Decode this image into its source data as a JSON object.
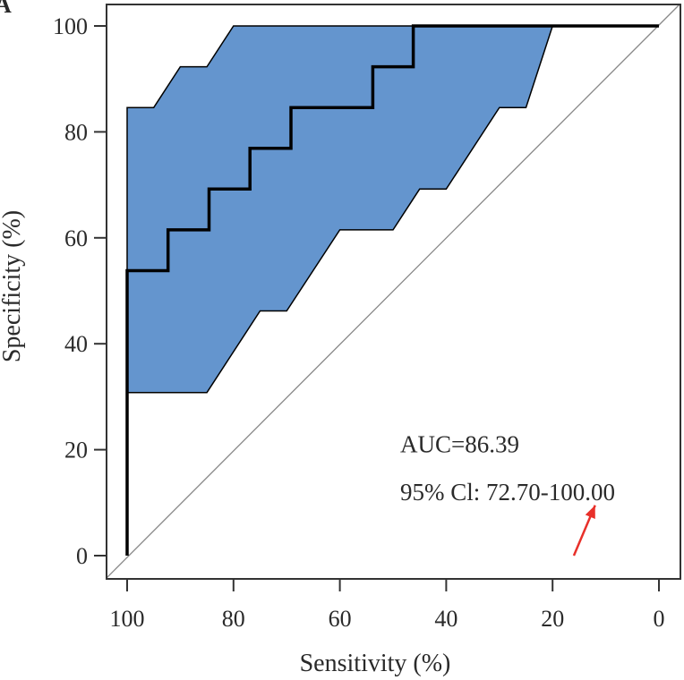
{
  "panel_label": "A",
  "chart_data": {
    "type": "line",
    "title": "",
    "xlabel": "Sensitivity (%)",
    "ylabel": "Specificity (%)",
    "xlim": [
      100,
      0
    ],
    "ylim": [
      0,
      100
    ],
    "x_reversed": true,
    "xticks": [
      100,
      80,
      60,
      40,
      20,
      0
    ],
    "yticks": [
      0,
      20,
      40,
      60,
      80,
      100
    ],
    "grid": false,
    "series": [
      {
        "name": "",
        "kind": "roc-curve",
        "color": "#000000",
        "points": [
          [
            100,
            0
          ],
          [
            100,
            53.8
          ],
          [
            92.3,
            53.8
          ],
          [
            92.3,
            61.5
          ],
          [
            84.6,
            61.5
          ],
          [
            84.6,
            69.2
          ],
          [
            76.9,
            69.2
          ],
          [
            76.9,
            76.9
          ],
          [
            69.2,
            76.9
          ],
          [
            69.2,
            84.6
          ],
          [
            53.8,
            84.6
          ],
          [
            53.8,
            92.3
          ],
          [
            46.2,
            92.3
          ],
          [
            46.2,
            100
          ],
          [
            0,
            100
          ]
        ]
      }
    ],
    "confidence_band": {
      "color": "#6495ce",
      "outline": "#000000",
      "upper": [
        [
          100,
          30.8
        ],
        [
          100,
          84.6
        ],
        [
          95,
          84.6
        ],
        [
          90,
          92.3
        ],
        [
          85,
          92.3
        ],
        [
          80,
          100
        ],
        [
          20,
          100
        ]
      ],
      "lower": [
        [
          20,
          100
        ],
        [
          25,
          84.6
        ],
        [
          30,
          84.6
        ],
        [
          40,
          69.2
        ],
        [
          45,
          69.2
        ],
        [
          50,
          61.5
        ],
        [
          60,
          61.5
        ],
        [
          70,
          46.2
        ],
        [
          75,
          46.2
        ],
        [
          85,
          30.8
        ],
        [
          100,
          30.8
        ]
      ]
    },
    "reference_line": {
      "from": [
        100,
        0
      ],
      "to": [
        0,
        100
      ],
      "color": "#888888"
    },
    "annotations": [
      {
        "text": "AUC=86.39",
        "x": 50,
        "y": 21
      },
      {
        "text": "95% Cl: 72.70-100.00",
        "x": 50,
        "y": 12
      }
    ],
    "arrow": {
      "color": "#e8302a",
      "from": [
        16,
        0
      ],
      "to": [
        12,
        9.5
      ]
    }
  }
}
